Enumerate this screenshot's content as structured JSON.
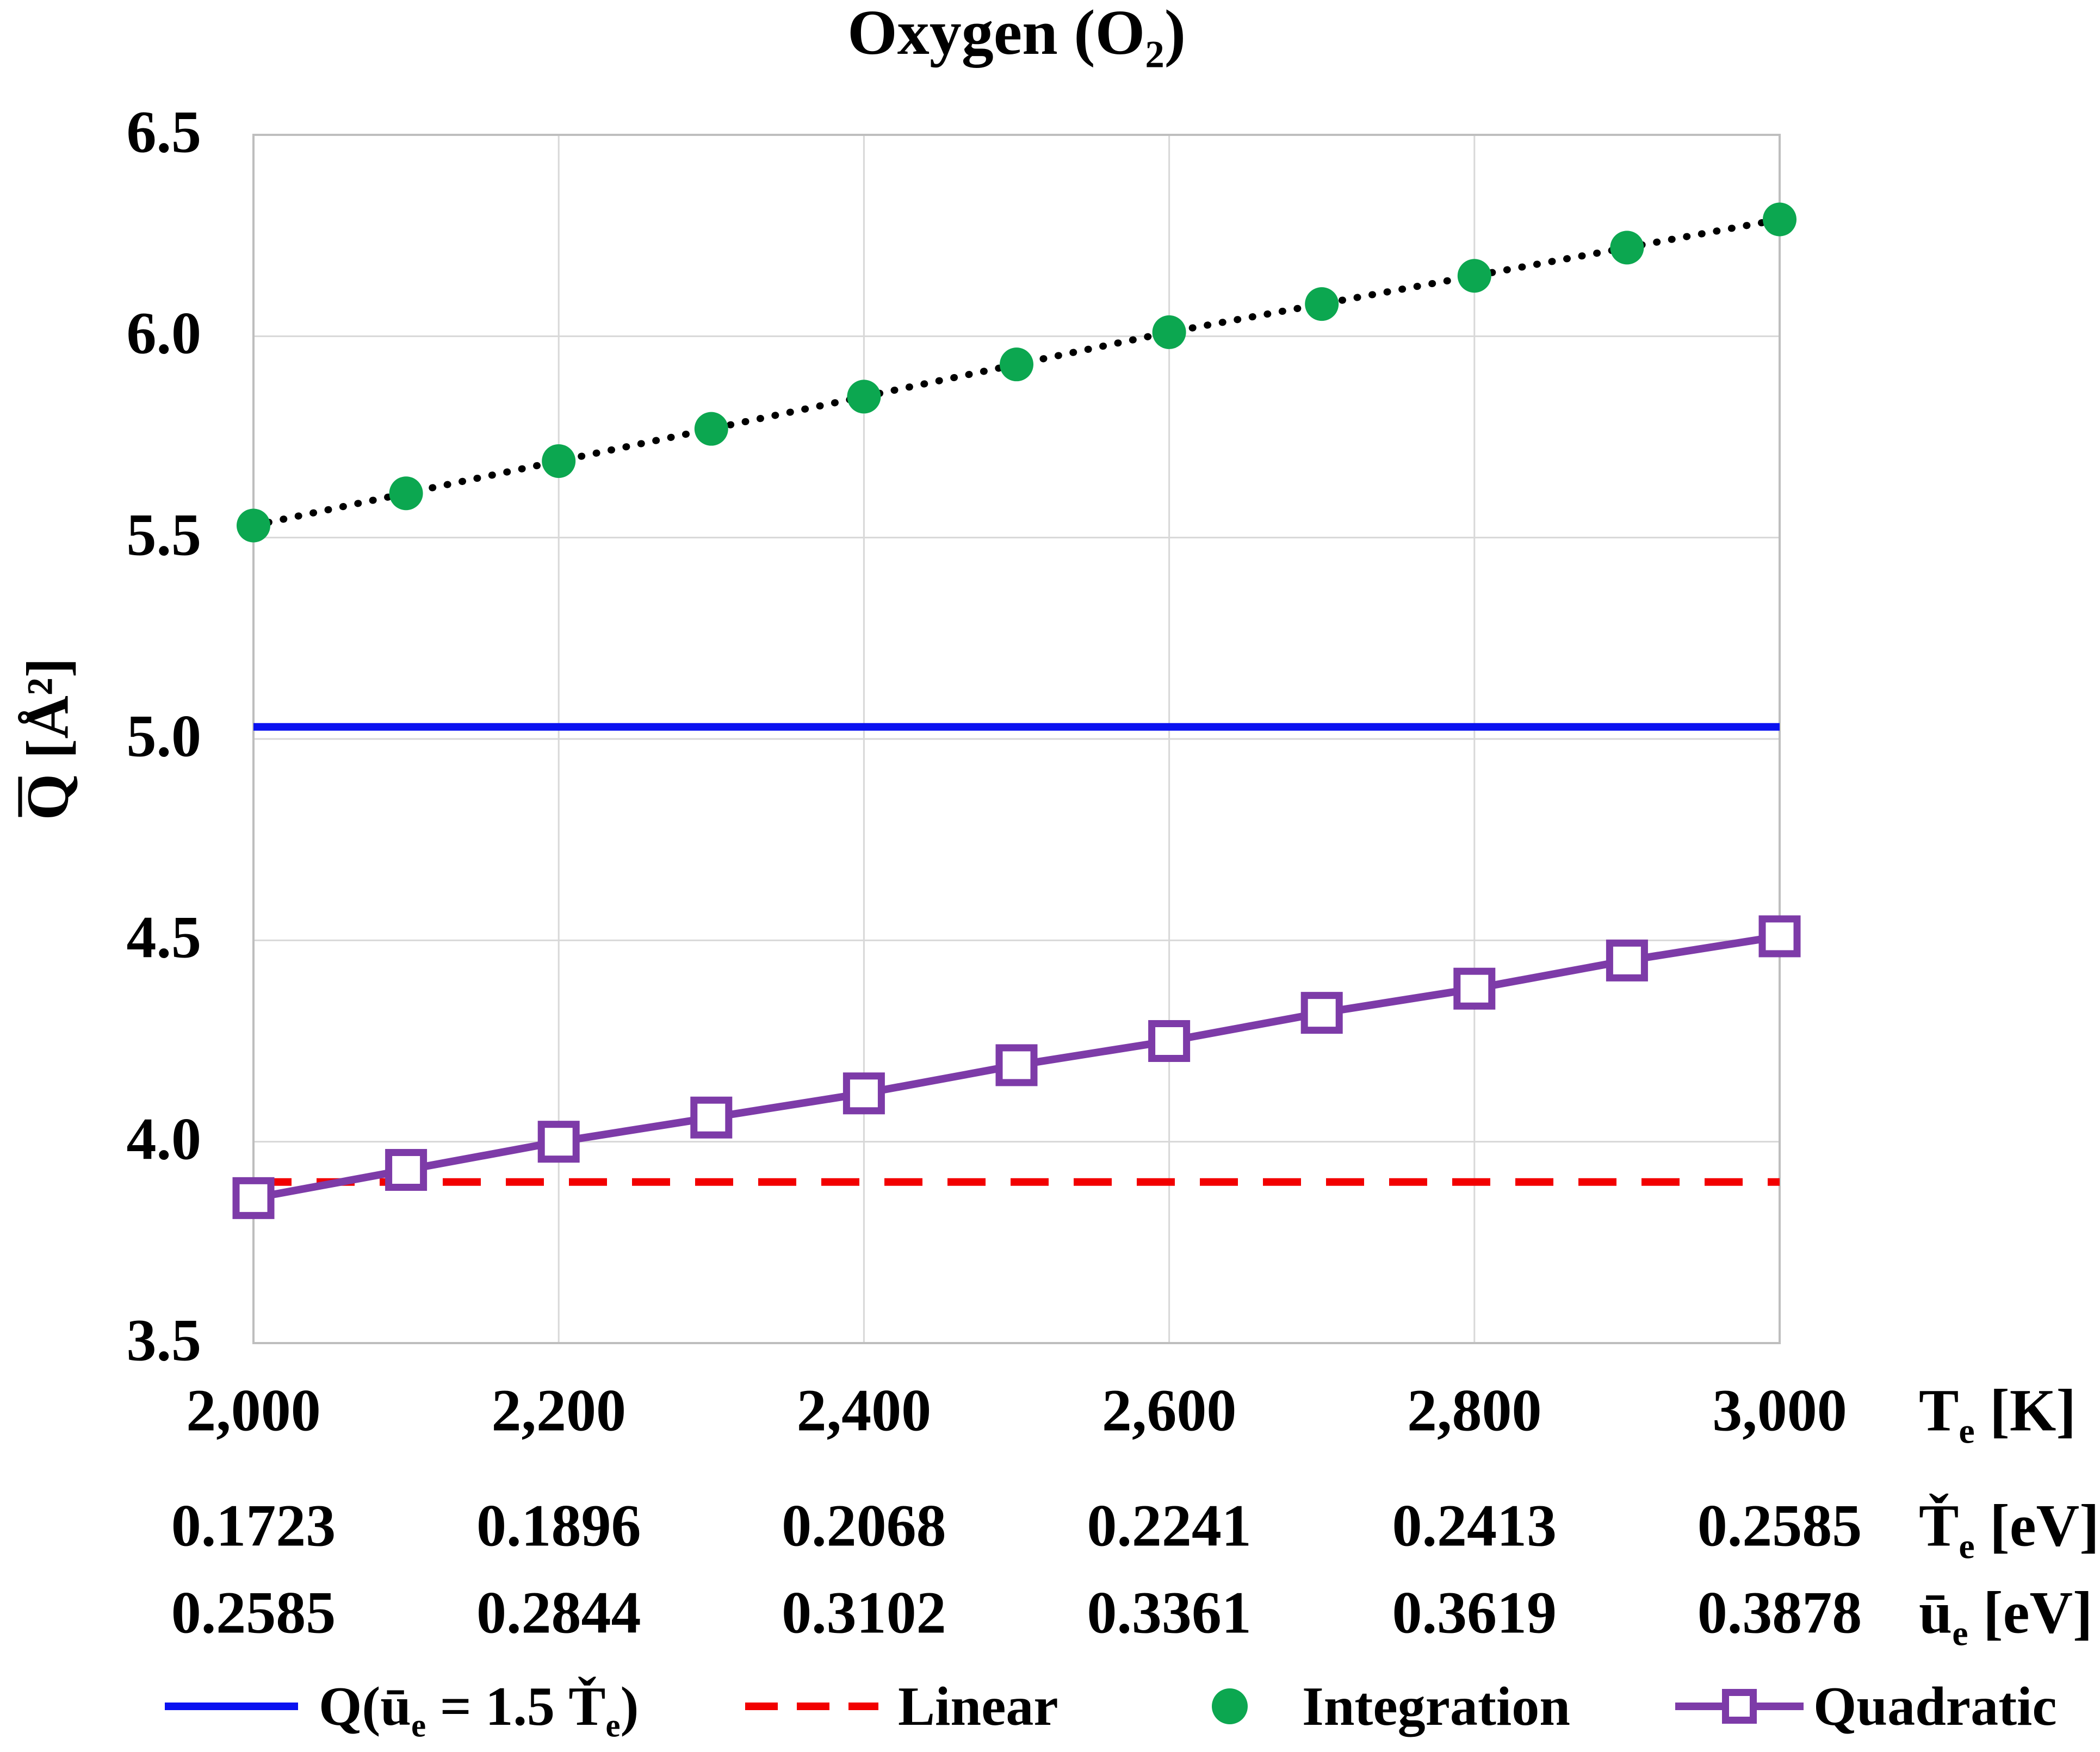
{
  "title_segments": [
    [
      "t",
      "Oxygen (O"
    ],
    [
      "s",
      "2"
    ],
    [
      "t",
      ")"
    ]
  ],
  "y_axis": {
    "label_segments": [
      [
        "b",
        "Q"
      ],
      [
        "t",
        " [Å²]"
      ]
    ],
    "ticks": [
      "6.5",
      "6.0",
      "5.5",
      "5.0",
      "4.5",
      "4.0",
      "3.5"
    ]
  },
  "x_axis_rows": [
    {
      "name": "temperature-kelvin",
      "unit_segments": [
        [
          "t",
          "T"
        ],
        [
          "s",
          "e"
        ],
        [
          "t",
          " [K]"
        ]
      ],
      "values": [
        "2,000",
        "2,200",
        "2,400",
        "2,600",
        "2,800",
        "3,000"
      ]
    },
    {
      "name": "temperature-ev",
      "unit_segments": [
        [
          "t",
          "Ť"
        ],
        [
          "s",
          "e"
        ],
        [
          "t",
          " [eV]"
        ]
      ],
      "values": [
        "0.1723",
        "0.1896",
        "0.2068",
        "0.2241",
        "0.2413",
        "0.2585"
      ]
    },
    {
      "name": "mean-energy-ev",
      "unit_segments": [
        [
          "t",
          "ū"
        ],
        [
          "s",
          "e"
        ],
        [
          "t",
          " [eV]"
        ]
      ],
      "values": [
        "0.2585",
        "0.2844",
        "0.3102",
        "0.3361",
        "0.3619",
        "0.3878"
      ]
    }
  ],
  "chart_data": {
    "type": "line",
    "title": "Oxygen (O2)",
    "xlabel": "Te [K]",
    "ylabel": "Q [Å²]",
    "x": [
      2000,
      2100,
      2200,
      2300,
      2400,
      2500,
      2600,
      2700,
      2800,
      2900,
      3000
    ],
    "xlim": [
      2000,
      3000
    ],
    "ylim": [
      3.5,
      6.5
    ],
    "x_gridline_step": 200,
    "y_tick_step": 0.5,
    "grid": true,
    "legend_position": "bottom",
    "secondary_x_ticks": {
      "Te_eV": [
        0.1723,
        0.1896,
        0.2068,
        0.2241,
        0.2413,
        0.2585
      ],
      "ue_eV": [
        0.2585,
        0.2844,
        0.3102,
        0.3361,
        0.3619,
        0.3878
      ]
    },
    "series": [
      {
        "name": "Q(ue = 1.5 Te)",
        "type": "hline",
        "value": 5.03,
        "color": "#0a12f0",
        "style": "solid",
        "width": 14
      },
      {
        "name": "Linear",
        "type": "hline",
        "value": 3.9,
        "color": "#f20000",
        "style": "dashed",
        "width": 14
      },
      {
        "name": "Integration",
        "type": "points",
        "marker": "circle",
        "color": "#0ca750",
        "connector": "dotted-black",
        "values": [
          5.53,
          5.61,
          5.69,
          5.77,
          5.85,
          5.93,
          6.01,
          6.08,
          6.15,
          6.22,
          6.29
        ]
      },
      {
        "name": "Quadratic",
        "type": "line-marker",
        "marker": "open-square",
        "color": "#7d3ba8",
        "values": [
          3.86,
          3.93,
          4.0,
          4.06,
          4.12,
          4.19,
          4.25,
          4.32,
          4.38,
          4.45,
          4.51
        ]
      }
    ]
  },
  "colors": {
    "grid": "#d8d8d8",
    "plot_border": "#bebebe",
    "background": "#ffffff",
    "text": "#000000"
  },
  "legend": {
    "items": [
      {
        "segments": [
          [
            "t",
            "Q(ū"
          ],
          [
            "s",
            "e"
          ],
          [
            "t",
            " = 1.5 Ť"
          ],
          [
            "s",
            "e"
          ],
          [
            "t",
            ")"
          ]
        ],
        "label": "Q(ūe = 1.5 Ťe)",
        "swatch": "blue-solid-line"
      },
      {
        "label": "Linear",
        "swatch": "red-dashed-line"
      },
      {
        "label": "Integration",
        "swatch": "green-dot"
      },
      {
        "label": "Quadratic",
        "swatch": "purple-line-open-square"
      }
    ]
  }
}
